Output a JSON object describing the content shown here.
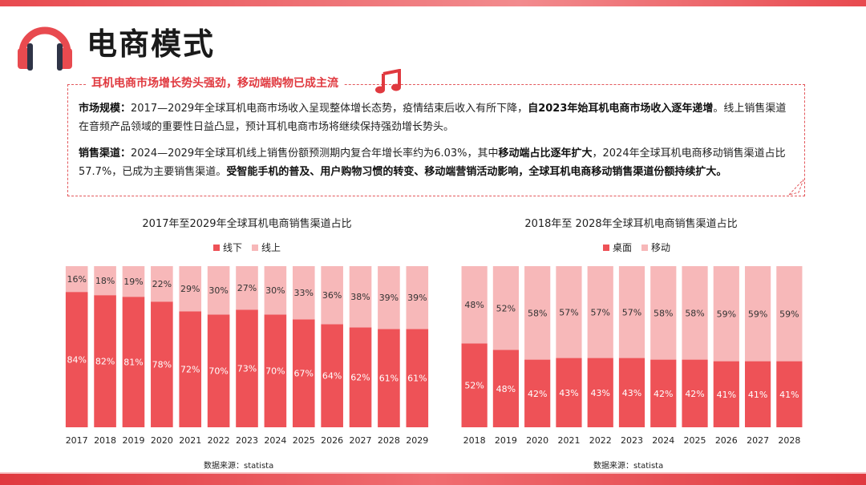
{
  "title": "电商模式",
  "headline": "耳机电商市场增长势头强劲，移动端购物已成主流",
  "paragraphs": {
    "p1": {
      "label": "市场规模：",
      "text1": "2017—2029年全球耳机电商市场收入呈现整体增长态势，疫情结束后收入有所下降，",
      "bold1": "自2023年始耳机电商市场收入逐年递增",
      "text2": "。线上销售渠道在音频产品领域的重要性日益凸显，预计耳机电商市场将继续保持强劲增长势头。"
    },
    "p2": {
      "label": "销售渠道：",
      "text1": "2024—2029年全球耳机线上销售份额预测期内复合年增长率约为6.03%，其中",
      "bold1": "移动端占比逐年扩大",
      "text2": "，2024年全球耳机电商移动销售渠道占比57.7%，已成为主要销售渠道。",
      "bold2": "受智能手机的普及、用户购物习惯的转变、移动端营销活动影响，全球耳机电商移动销售渠道份额持续扩大。"
    }
  },
  "colors": {
    "accent": "#e0393f",
    "bar_dark": "#ee5257",
    "bar_light": "#f7b8b9"
  },
  "chart_data": [
    {
      "type": "bar",
      "stacked": true,
      "title": "2017年至2029年全球耳机电商销售渠道占比",
      "categories": [
        "2017",
        "2018",
        "2019",
        "2020",
        "2021",
        "2022",
        "2023",
        "2024",
        "2025",
        "2026",
        "2027",
        "2028",
        "2029"
      ],
      "series": [
        {
          "name": "线下",
          "values": [
            84,
            82,
            81,
            78,
            72,
            70,
            73,
            70,
            67,
            64,
            62,
            61,
            61
          ],
          "labels": [
            "84%",
            "82%",
            "81%",
            "78%",
            "72%",
            "70%",
            "73%",
            "70%",
            "67%",
            "64%",
            "62%",
            "61%",
            "61%"
          ]
        },
        {
          "name": "线上",
          "values": [
            16,
            18,
            19,
            22,
            29,
            30,
            27,
            30,
            33,
            36,
            38,
            39,
            39
          ],
          "labels": [
            "16%",
            "18%",
            "19%",
            "22%",
            "29%",
            "30%",
            "27%",
            "30%",
            "33%",
            "36%",
            "38%",
            "39%",
            "39%"
          ]
        }
      ],
      "ylim": [
        0,
        100
      ],
      "legend": "top-center",
      "source": "数据来源：statista"
    },
    {
      "type": "bar",
      "stacked": true,
      "title": "2018年至 2028年全球耳机电商销售渠道占比",
      "categories": [
        "2018",
        "2019",
        "2020",
        "2021",
        "2022",
        "2023",
        "2024",
        "2025",
        "2026",
        "2027",
        "2028"
      ],
      "series": [
        {
          "name": "桌面",
          "values": [
            52,
            48,
            42,
            43,
            43,
            43,
            42,
            42,
            41,
            41,
            41
          ],
          "labels": [
            "52%",
            "48%",
            "42%",
            "43%",
            "43%",
            "43%",
            "42%",
            "42%",
            "41%",
            "41%",
            "41%"
          ]
        },
        {
          "name": "移动",
          "values": [
            48,
            52,
            58,
            57,
            57,
            57,
            58,
            58,
            59,
            59,
            59
          ],
          "labels": [
            "48%",
            "52%",
            "58%",
            "57%",
            "57%",
            "57%",
            "58%",
            "58%",
            "59%",
            "59%",
            "59%"
          ]
        }
      ],
      "ylim": [
        0,
        100
      ],
      "legend": "top-center",
      "source": "数据来源：statista"
    }
  ]
}
